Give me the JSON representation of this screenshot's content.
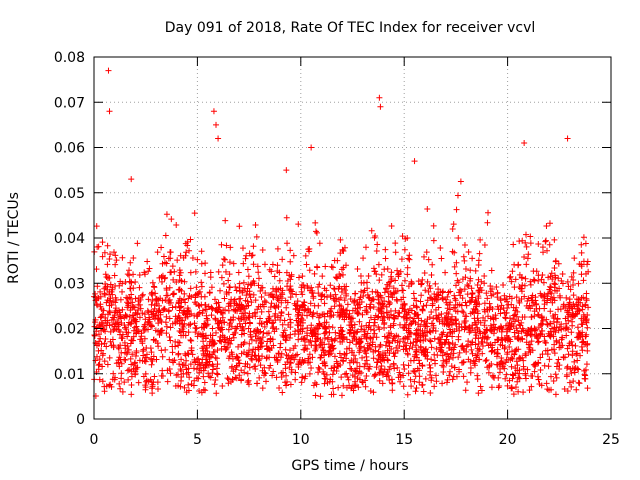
{
  "chart_data": {
    "type": "scatter",
    "title": "Day 091 of 2018, Rate Of TEC Index for receiver vcvl",
    "xlabel": "GPS time / hours",
    "ylabel": "ROTI / TECUs",
    "xlim": [
      0,
      25
    ],
    "ylim": [
      0,
      0.08
    ],
    "xticks": [
      0,
      5,
      10,
      15,
      20,
      25
    ],
    "xtick_labels": [
      "0",
      "5",
      "10",
      "15",
      "20",
      "25"
    ],
    "yticks": [
      0,
      0.01,
      0.02,
      0.03,
      0.04,
      0.05,
      0.06,
      0.07,
      0.08
    ],
    "ytick_labels": [
      "0",
      "0.01",
      "0.02",
      "0.03",
      "0.04",
      "0.05",
      "0.06",
      "0.07",
      "0.08"
    ],
    "grid": true,
    "marker": "+",
    "color": "#ff0000",
    "series": [
      {
        "name": "ROTI",
        "x_range": [
          0,
          23.9
        ],
        "bulk_y_range": [
          0.004,
          0.035
        ],
        "notable_points": [
          {
            "x": 0.7,
            "y": 0.077
          },
          {
            "x": 0.75,
            "y": 0.068
          },
          {
            "x": 5.8,
            "y": 0.068
          },
          {
            "x": 5.9,
            "y": 0.065
          },
          {
            "x": 6.0,
            "y": 0.062
          },
          {
            "x": 13.8,
            "y": 0.071
          },
          {
            "x": 13.85,
            "y": 0.069
          },
          {
            "x": 10.5,
            "y": 0.06
          },
          {
            "x": 20.8,
            "y": 0.061
          },
          {
            "x": 22.9,
            "y": 0.062
          },
          {
            "x": 15.5,
            "y": 0.057
          },
          {
            "x": 1.8,
            "y": 0.053
          },
          {
            "x": 9.3,
            "y": 0.055
          }
        ]
      }
    ]
  }
}
